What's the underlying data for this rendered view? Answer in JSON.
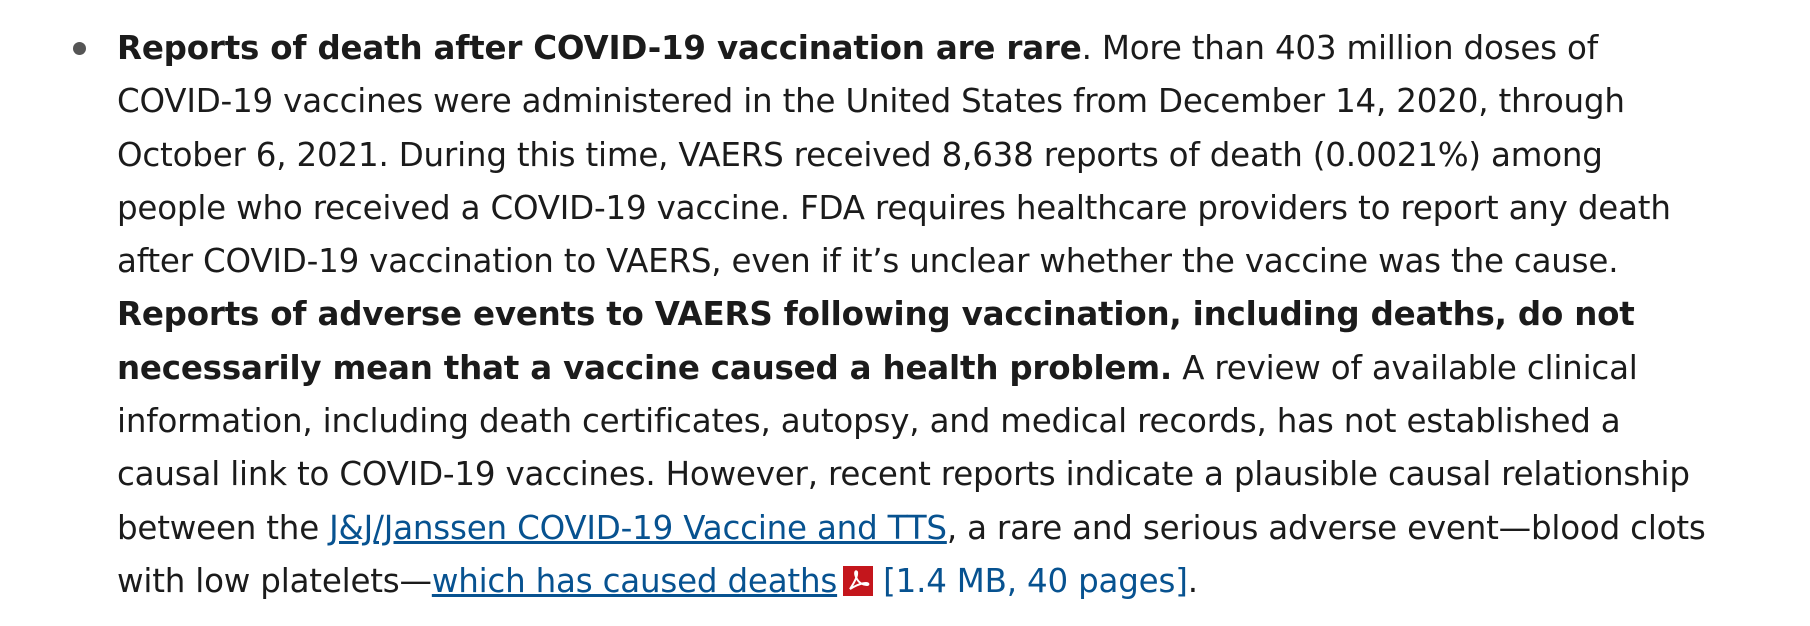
{
  "bullet": {
    "bold_intro": "Reports of death after COVID-19 vaccination are rare",
    "text_1": ". More than 403 million doses of COVID-19 vaccines were administered in the United States from December 14, 2020, through October 6, 2021. During this time, VAERS received 8,638 reports of death (0.0021%) among people who received a COVID-19 vaccine. FDA requires healthcare providers to report any death after COVID-19 vaccination to VAERS, even if it’s unclear whether the vaccine was the cause. ",
    "bold_2": "Reports of adverse events to VAERS following vaccination, including deaths, do not necessarily mean that a vaccine caused a health problem.",
    "text_2": " A review of available clinical information, including death certificates, autopsy, and medical records, has not established a causal link to COVID-19 vaccines. However, recent reports indicate a plausible causal relationship between the ",
    "link_1": "J&J/Janssen COVID-19 Vaccine and TTS",
    "text_3": ", a rare and serious adverse event—blood clots with low platelets—",
    "link_2": "which has caused deaths",
    "file_info": "[1.4 MB, 40 pages]",
    "text_4": "."
  }
}
